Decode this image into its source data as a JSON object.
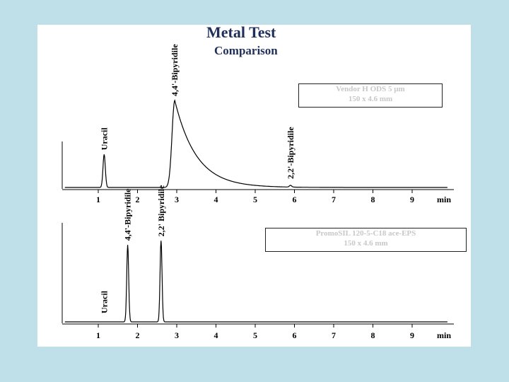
{
  "title": "Metal Test",
  "subtitle": "Comparison",
  "colors": {
    "background": "#bfe0e8",
    "panel": "#ffffff",
    "title": "#1f2f5a",
    "trace": "#000000"
  },
  "chart_data": [
    {
      "type": "line",
      "legend": [
        "Vendor H ODS 5 µm",
        "150 x 4.6 mm"
      ],
      "xlabel": "min",
      "xticks": [
        1,
        2,
        3,
        4,
        5,
        6,
        7,
        8,
        9
      ],
      "xlim": [
        0.15,
        10.2
      ],
      "peaks": [
        {
          "label": "Uracil",
          "x": 1.15,
          "height": 0.38
        },
        {
          "label": "4,4'-Bipyridile",
          "x": 2.95,
          "height": 1.0,
          "tailing": true
        },
        {
          "label": "2,2'-Bipyridile",
          "x": 5.9,
          "height": 0.02
        }
      ]
    },
    {
      "type": "line",
      "legend": [
        "PromoSIL 120-5-C18 ace-EPS",
        "150 x 4.6 mm"
      ],
      "xlabel": "min",
      "xticks": [
        1,
        2,
        3,
        4,
        5,
        6,
        7,
        8,
        9
      ],
      "xlim": [
        0.15,
        10.2
      ],
      "peaks": [
        {
          "label": "Uracil",
          "x": 1.15,
          "height": 0.0
        },
        {
          "label": "4,4'-Bipyridile",
          "x": 1.75,
          "height": 0.74
        },
        {
          "label": "2,2' Bipyridile",
          "x": 2.6,
          "height": 0.78
        }
      ]
    }
  ]
}
